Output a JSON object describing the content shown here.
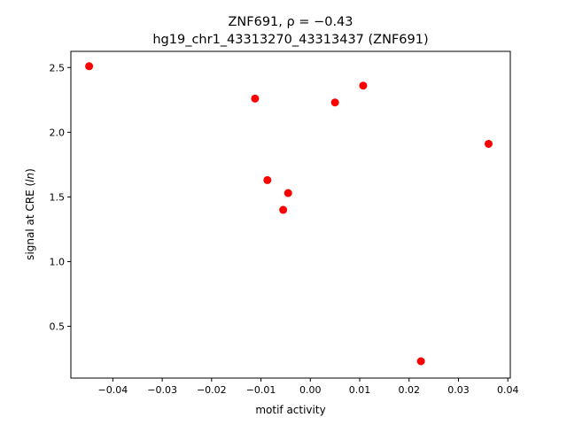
{
  "chart_data": {
    "type": "scatter",
    "title_line1": "ZNF691, ρ = −0.43",
    "title_line2": "hg19_chr1_43313270_43313437 (ZNF691)",
    "xlabel": "motif activity",
    "ylabel": "signal at CRE (ln)",
    "xlim": [
      -0.0485,
      0.0405
    ],
    "ylim": [
      0.1,
      2.625
    ],
    "x_ticks": [
      -0.04,
      -0.03,
      -0.02,
      -0.01,
      0.0,
      0.01,
      0.02,
      0.03,
      0.04
    ],
    "x_tick_labels": [
      "−0.04",
      "−0.03",
      "−0.02",
      "−0.01",
      "0.00",
      "0.01",
      "0.02",
      "0.03",
      "0.04"
    ],
    "y_ticks": [
      0.5,
      1.0,
      1.5,
      2.0,
      2.5
    ],
    "y_tick_labels": [
      "0.5",
      "1.0",
      "1.5",
      "2.0",
      "2.5"
    ],
    "grid": false,
    "marker_color": "#ff0000",
    "points": [
      {
        "x": -0.0448,
        "y": 2.51
      },
      {
        "x": -0.0112,
        "y": 2.26
      },
      {
        "x": -0.0087,
        "y": 1.63
      },
      {
        "x": -0.0055,
        "y": 1.4
      },
      {
        "x": -0.0045,
        "y": 1.53
      },
      {
        "x": 0.005,
        "y": 2.23
      },
      {
        "x": 0.0107,
        "y": 2.36
      },
      {
        "x": 0.0224,
        "y": 0.23
      },
      {
        "x": 0.0361,
        "y": 1.91
      }
    ]
  }
}
